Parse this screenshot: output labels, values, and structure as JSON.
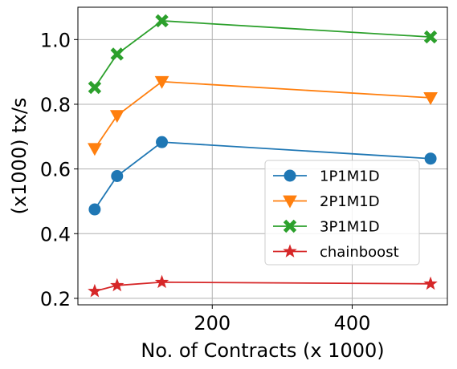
{
  "chart_data": {
    "type": "line",
    "xlabel": "No. of Contracts (x 1000)",
    "ylabel": "(x1000) tx/s",
    "x": [
      32,
      64,
      128,
      512
    ],
    "xlim": [
      8,
      536
    ],
    "ylim": [
      0.18,
      1.1
    ],
    "xticks": [
      200,
      400
    ],
    "yticks": [
      0.2,
      0.4,
      0.6,
      0.8,
      1.0
    ],
    "xtick_labels": [
      "200",
      "400"
    ],
    "ytick_labels": [
      "0.2",
      "0.4",
      "0.6",
      "0.8",
      "1.0"
    ],
    "grid": true,
    "legend_position": "center-right",
    "series": [
      {
        "name": "1P1M1D",
        "color": "#1f77b4",
        "marker": "circle",
        "values": [
          0.475,
          0.578,
          0.683,
          0.632
        ]
      },
      {
        "name": "2P1M1D",
        "color": "#ff7f0e",
        "marker": "triangle-down",
        "values": [
          0.663,
          0.765,
          0.87,
          0.82
        ]
      },
      {
        "name": "3P1M1D",
        "color": "#2ca02c",
        "marker": "x-filled",
        "values": [
          0.852,
          0.955,
          1.058,
          1.008
        ]
      },
      {
        "name": "chainboost",
        "color": "#d62728",
        "marker": "star",
        "values": [
          0.222,
          0.24,
          0.25,
          0.245
        ]
      }
    ]
  }
}
